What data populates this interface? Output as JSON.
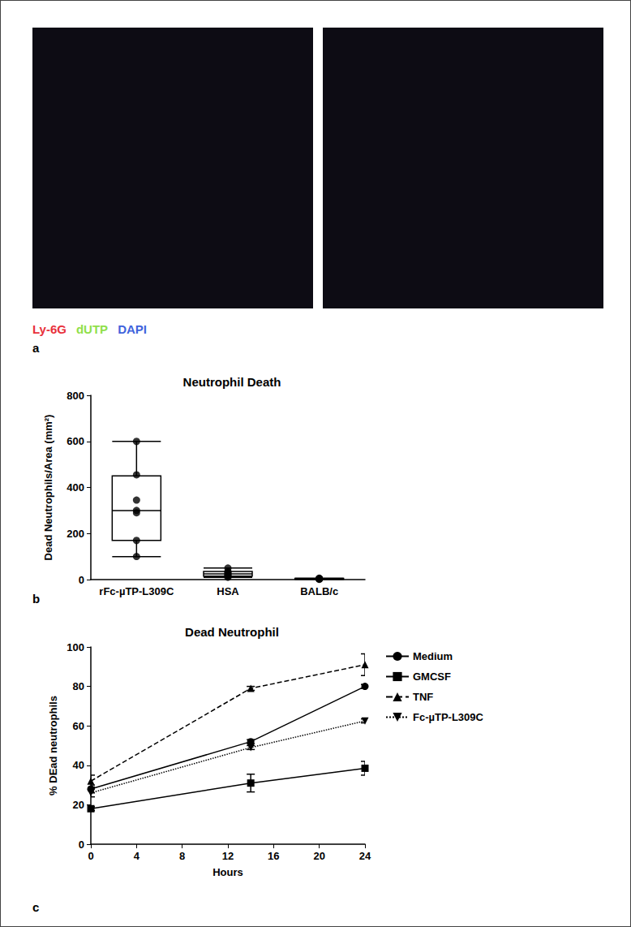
{
  "figure_a": {
    "label": "a",
    "stain_legend": [
      {
        "text": "Ly-6G",
        "color": "#e8303a"
      },
      {
        "text": "dUTP",
        "color": "#8fe04a"
      },
      {
        "text": "DAPI",
        "color": "#3f63dc"
      }
    ]
  },
  "chart_data": [
    {
      "type": "box",
      "label": "b",
      "title": "Neutrophil Death",
      "y_label": "Dead Neutrophils/Area (mm²)",
      "categories": [
        "rFc-µTP-L309C",
        "HSA",
        "BALB/c"
      ],
      "box": [
        [
          100,
          170,
          300,
          450,
          600
        ],
        [
          10,
          15,
          25,
          35,
          50
        ],
        [
          1,
          2,
          3,
          5,
          6
        ]
      ],
      "points": [
        [
          600,
          455,
          345,
          300,
          290,
          170,
          100
        ],
        [
          50,
          35,
          30,
          25,
          20,
          15,
          10
        ],
        [
          6,
          5,
          4,
          3,
          2,
          1
        ]
      ],
      "color": "#000000",
      "ylim": [
        0,
        800
      ],
      "yticks": [
        0,
        200,
        400,
        600,
        800
      ],
      "grid": false
    },
    {
      "type": "line",
      "label": "c",
      "title": "Dead Neutrophil",
      "x_label": "Hours",
      "y_label": "% DEad neutrophils",
      "x": [
        0,
        14,
        24
      ],
      "series": [
        {
          "name": "Medium",
          "color": "#000000",
          "marker": "circle",
          "line_style": "solid",
          "values": [
            28,
            52,
            80
          ],
          "errors": [
            2,
            1,
            1
          ]
        },
        {
          "name": "GMCSF",
          "color": "#000000",
          "marker": "square",
          "line_style": "solid",
          "values": [
            18,
            31,
            38.5
          ],
          "errors": [
            1,
            4.5,
            3.5
          ]
        },
        {
          "name": "TNF",
          "color": "#000000",
          "marker": "triangle",
          "line_style": "dashed",
          "values": [
            32,
            79,
            91
          ],
          "errors": [
            3,
            1,
            5.5
          ]
        },
        {
          "name": "Fc-µTP-L309C",
          "color": "#000000",
          "marker": "triangle-down",
          "line_style": "dotted",
          "values": [
            26,
            49,
            62.5
          ],
          "errors": [
            2,
            1,
            1
          ]
        }
      ],
      "xlim": [
        0,
        24
      ],
      "xticks": [
        0,
        4,
        8,
        12,
        16,
        20,
        24
      ],
      "ylim": [
        0,
        100
      ],
      "yticks": [
        0,
        20,
        40,
        60,
        80,
        100
      ],
      "grid": false,
      "legend": "right"
    }
  ]
}
